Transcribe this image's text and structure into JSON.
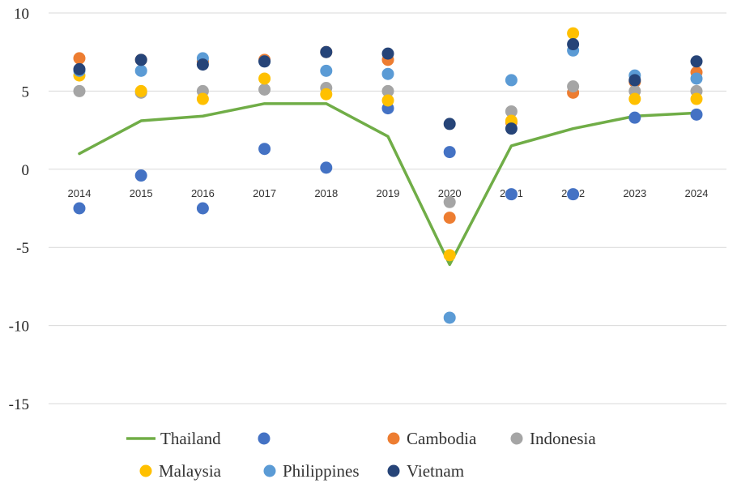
{
  "chart_data": {
    "type": "line+scatter",
    "title": "",
    "xlabel": "",
    "ylabel": "",
    "ylim": [
      -15,
      10
    ],
    "yticks": [
      10,
      5,
      0,
      -5,
      -10,
      -15
    ],
    "gridlines": true,
    "categories": [
      "2014",
      "2015",
      "2016",
      "2017",
      "2018",
      "2019",
      "2020",
      "2021",
      "2022",
      "2023",
      "2024"
    ],
    "legend_position": "bottom",
    "series": [
      {
        "name": "Thailand",
        "kind": "line",
        "color": "#70AD47",
        "values": [
          1.0,
          3.1,
          3.4,
          4.2,
          4.2,
          2.1,
          -6.1,
          1.5,
          2.6,
          3.4,
          3.6
        ]
      },
      {
        "name": "",
        "kind": "scatter",
        "color": "#4472C4",
        "values": [
          -2.5,
          -0.4,
          -2.5,
          1.3,
          0.1,
          3.9,
          1.1,
          -1.6,
          -1.6,
          3.3,
          3.5
        ]
      },
      {
        "name": "Cambodia",
        "kind": "scatter",
        "color": "#ED7D31",
        "values": [
          7.1,
          7.0,
          6.9,
          7.0,
          7.5,
          7.0,
          -3.1,
          3.0,
          4.9,
          5.6,
          6.2
        ]
      },
      {
        "name": "Indonesia",
        "kind": "scatter",
        "color": "#A5A5A5",
        "values": [
          5.0,
          4.9,
          5.0,
          5.1,
          5.2,
          5.0,
          -2.1,
          3.7,
          5.3,
          5.0,
          5.0
        ]
      },
      {
        "name": "Malaysia",
        "kind": "scatter",
        "color": "#FFC000",
        "values": [
          6.0,
          5.0,
          4.5,
          5.8,
          4.8,
          4.4,
          -5.5,
          3.1,
          8.7,
          4.5,
          4.5
        ]
      },
      {
        "name": "Philippines",
        "kind": "scatter",
        "color": "#5B9BD5",
        "values": [
          6.3,
          6.3,
          7.1,
          6.9,
          6.3,
          6.1,
          -9.5,
          5.7,
          7.6,
          6.0,
          5.8
        ]
      },
      {
        "name": "Vietnam",
        "kind": "scatter",
        "color": "#264478",
        "values": [
          6.4,
          7.0,
          6.7,
          6.9,
          7.5,
          7.4,
          2.9,
          2.6,
          8.0,
          5.7,
          6.9
        ]
      }
    ]
  }
}
